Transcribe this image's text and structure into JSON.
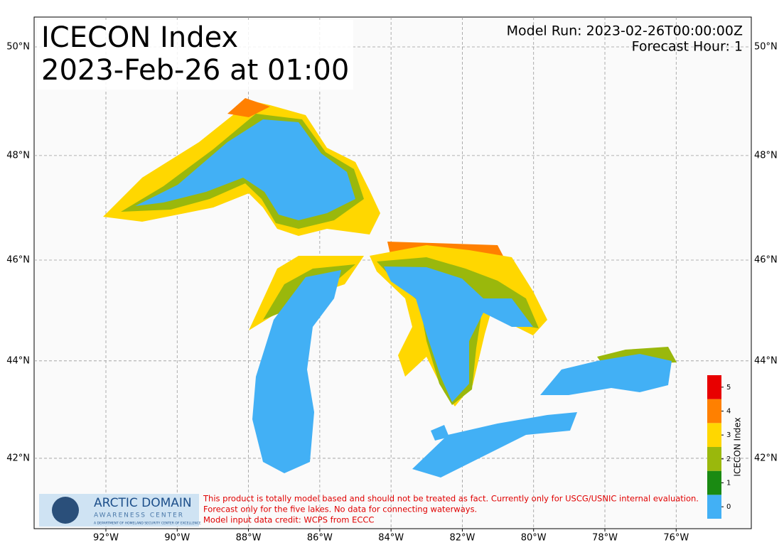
{
  "title": "ICECON Index",
  "subtitle": "2023-Feb-26 at 01:00",
  "model_run": "Model Run: 2023-02-26T00:00:00Z",
  "forecast_hour": "Forecast Hour: 1",
  "lon_ticks": [
    {
      "value": -92,
      "label": "92°W"
    },
    {
      "value": -90,
      "label": "90°W"
    },
    {
      "value": -88,
      "label": "88°W"
    },
    {
      "value": -86,
      "label": "86°W"
    },
    {
      "value": -84,
      "label": "84°W"
    },
    {
      "value": -82,
      "label": "82°W"
    },
    {
      "value": -80,
      "label": "80°W"
    },
    {
      "value": -78,
      "label": "78°W"
    },
    {
      "value": -76,
      "label": "76°W"
    }
  ],
  "lat_ticks": [
    {
      "value": 50,
      "label": "50°N"
    },
    {
      "value": 48,
      "label": "48°N"
    },
    {
      "value": 46,
      "label": "46°N"
    },
    {
      "value": 44,
      "label": "44°N"
    },
    {
      "value": 42,
      "label": "42°N"
    }
  ],
  "colorbar": {
    "label": "ICECON Index",
    "levels": [
      0,
      1,
      2,
      3,
      4,
      5
    ],
    "colors": [
      "#42b0f5",
      "#1a8a12",
      "#9ab80c",
      "#ffd700",
      "#ff8000",
      "#e80000"
    ]
  },
  "logo": {
    "name": "ARCTIC DOMAIN",
    "sub": "AWARENESS CENTER",
    "tag": "A DEPARTMENT OF HOMELAND SECURITY CENTER OF EXCELLENCE"
  },
  "disclaimer": [
    "This product is totally model based and should not be treated as fact. Currently only for USCG/USNIC internal evaluation.",
    "Forecast only for the five lakes. No data for connecting waterways.",
    "Model input data credit: WCPS from ECCC"
  ]
}
